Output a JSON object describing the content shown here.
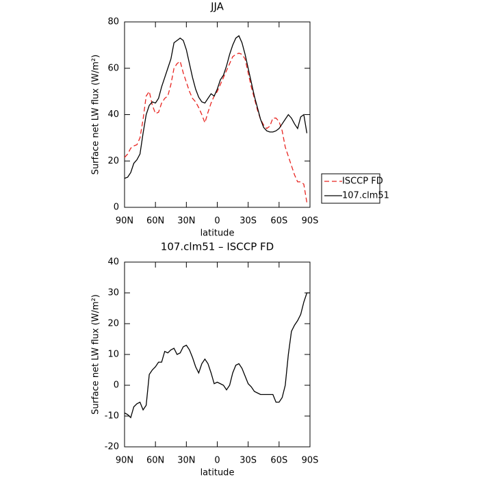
{
  "chart_data": [
    {
      "type": "line",
      "title": "JJA",
      "xlabel": "latitude",
      "ylabel": "Surface net LW flux (W/m²)",
      "x": [
        90,
        87,
        84,
        81,
        78,
        75,
        72,
        69,
        66,
        63,
        60,
        57,
        54,
        51,
        48,
        45,
        42,
        39,
        36,
        33,
        30,
        27,
        24,
        21,
        18,
        15,
        12,
        9,
        6,
        3,
        0,
        -3,
        -6,
        -9,
        -12,
        -15,
        -18,
        -21,
        -24,
        -27,
        -30,
        -33,
        -36,
        -39,
        -42,
        -45,
        -48,
        -51,
        -54,
        -57,
        -60,
        -63,
        -66,
        -69,
        -72,
        -75,
        -78,
        -81,
        -84,
        -87
      ],
      "series": [
        {
          "name": "ISCCP FD",
          "color": "#e8231f",
          "dash": true,
          "values": [
            21.5,
            23,
            25.5,
            26.5,
            27,
            30,
            38,
            48,
            50,
            44,
            40.5,
            41,
            45,
            47,
            48,
            53,
            60,
            62,
            63,
            58,
            54,
            50,
            47,
            45.5,
            43,
            40,
            36.5,
            41,
            45,
            48,
            50,
            53,
            56,
            59,
            62,
            65,
            66,
            66.5,
            66,
            64,
            58,
            52,
            47,
            42,
            38,
            35.5,
            34,
            35,
            38.5,
            38.5,
            37,
            33,
            26,
            22,
            18,
            14,
            11,
            11,
            10,
            2
          ]
        },
        {
          "name": "107.clm51",
          "color": "#000000",
          "dash": false,
          "values": [
            12.5,
            13,
            15,
            19,
            20.5,
            23,
            32,
            40,
            44,
            45.5,
            45,
            47,
            52,
            56,
            60,
            64,
            71,
            72,
            73,
            72,
            68,
            62,
            56,
            51,
            47.5,
            45.5,
            45,
            47,
            49,
            48,
            51,
            55,
            57,
            61,
            66,
            70,
            73,
            74,
            71,
            66,
            60,
            54,
            48,
            43,
            38,
            34.5,
            33,
            32.5,
            32.5,
            33,
            34,
            36,
            38,
            40,
            38.5,
            36,
            34,
            39,
            40,
            32
          ]
        }
      ],
      "xlim": [
        90,
        -90
      ],
      "xticks": [
        {
          "value": 90,
          "label": "90N"
        },
        {
          "value": 60,
          "label": "60N"
        },
        {
          "value": 30,
          "label": "30N"
        },
        0,
        {
          "value": -30,
          "label": "30S"
        },
        {
          "value": -60,
          "label": "60S"
        },
        {
          "value": -90,
          "label": "90S"
        }
      ],
      "ylim": [
        0,
        80
      ],
      "yticks": [
        0,
        20,
        40,
        60,
        80
      ],
      "legend": "right"
    },
    {
      "type": "line",
      "title": "107.clm51 – ISCCP FD",
      "xlabel": "latitude",
      "ylabel": "Surface net LW flux (W/m²)",
      "x": [
        90,
        87,
        84,
        81,
        78,
        75,
        72,
        69,
        66,
        63,
        60,
        57,
        54,
        51,
        48,
        45,
        42,
        39,
        36,
        33,
        30,
        27,
        24,
        21,
        18,
        15,
        12,
        9,
        6,
        3,
        0,
        -3,
        -6,
        -9,
        -12,
        -15,
        -18,
        -21,
        -24,
        -27,
        -30,
        -33,
        -36,
        -39,
        -42,
        -45,
        -48,
        -51,
        -54,
        -57,
        -60,
        -63,
        -66,
        -69,
        -72,
        -75,
        -78,
        -81,
        -84,
        -87,
        -90
      ],
      "series": [
        {
          "color": "#000000",
          "dash": false,
          "values": [
            -9,
            -9.5,
            -10.5,
            -7,
            -6,
            -5.5,
            -8,
            -6.5,
            3.5,
            5,
            6,
            7.5,
            7.5,
            11,
            10.5,
            11.5,
            12,
            10,
            10.5,
            12.5,
            13,
            11.5,
            9,
            6,
            4,
            7,
            8.5,
            7,
            4,
            0.5,
            1,
            0.5,
            0,
            -1.5,
            0,
            4,
            6.5,
            7,
            5.5,
            3,
            0.5,
            -0.5,
            -2,
            -2.5,
            -3,
            -3,
            -3,
            -3,
            -3,
            -5.5,
            -5.5,
            -4,
            0,
            10,
            17.5,
            19.5,
            21,
            23,
            27,
            30,
            30
          ]
        }
      ],
      "xlim": [
        90,
        -90
      ],
      "xticks": [
        {
          "value": 90,
          "label": "90N"
        },
        {
          "value": 60,
          "label": "60N"
        },
        {
          "value": 30,
          "label": "30N"
        },
        0,
        {
          "value": -30,
          "label": "30S"
        },
        {
          "value": -60,
          "label": "60S"
        },
        {
          "value": -90,
          "label": "90S"
        }
      ],
      "ylim": [
        -20,
        40
      ],
      "yticks": [
        -20,
        -10,
        0,
        10,
        20,
        30,
        40
      ]
    }
  ]
}
